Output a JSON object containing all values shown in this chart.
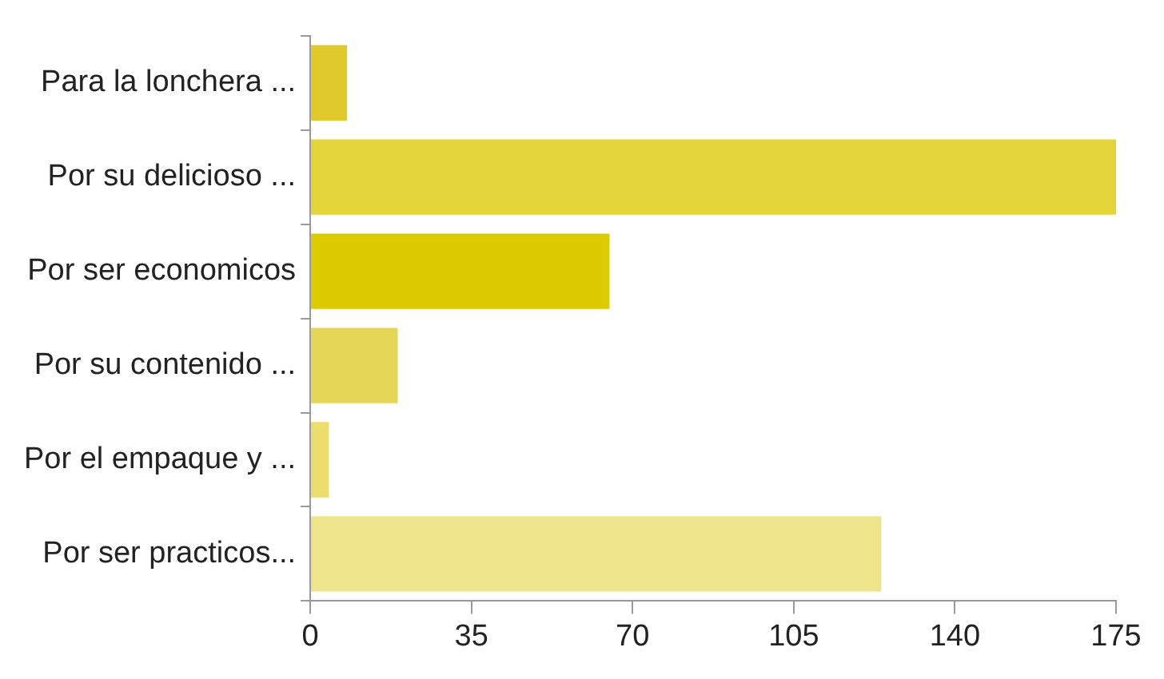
{
  "chart_data": {
    "type": "bar",
    "orientation": "horizontal",
    "categories": [
      "Para la lonchera ...",
      "Por su delicioso ...",
      "Por ser economicos",
      "Por su contenido ...",
      "Por el empaque y ...",
      "Por ser practicos..."
    ],
    "values": [
      8,
      175,
      65,
      19,
      4,
      124
    ],
    "colors": [
      "#e0c92a",
      "#e3d43a",
      "#dccb00",
      "#e6d658",
      "#ecdd6e",
      "#ede48c"
    ],
    "xlim": [
      0,
      175
    ],
    "xticks": [
      0,
      35,
      70,
      105,
      140,
      175
    ],
    "grid": false,
    "legend": false
  }
}
